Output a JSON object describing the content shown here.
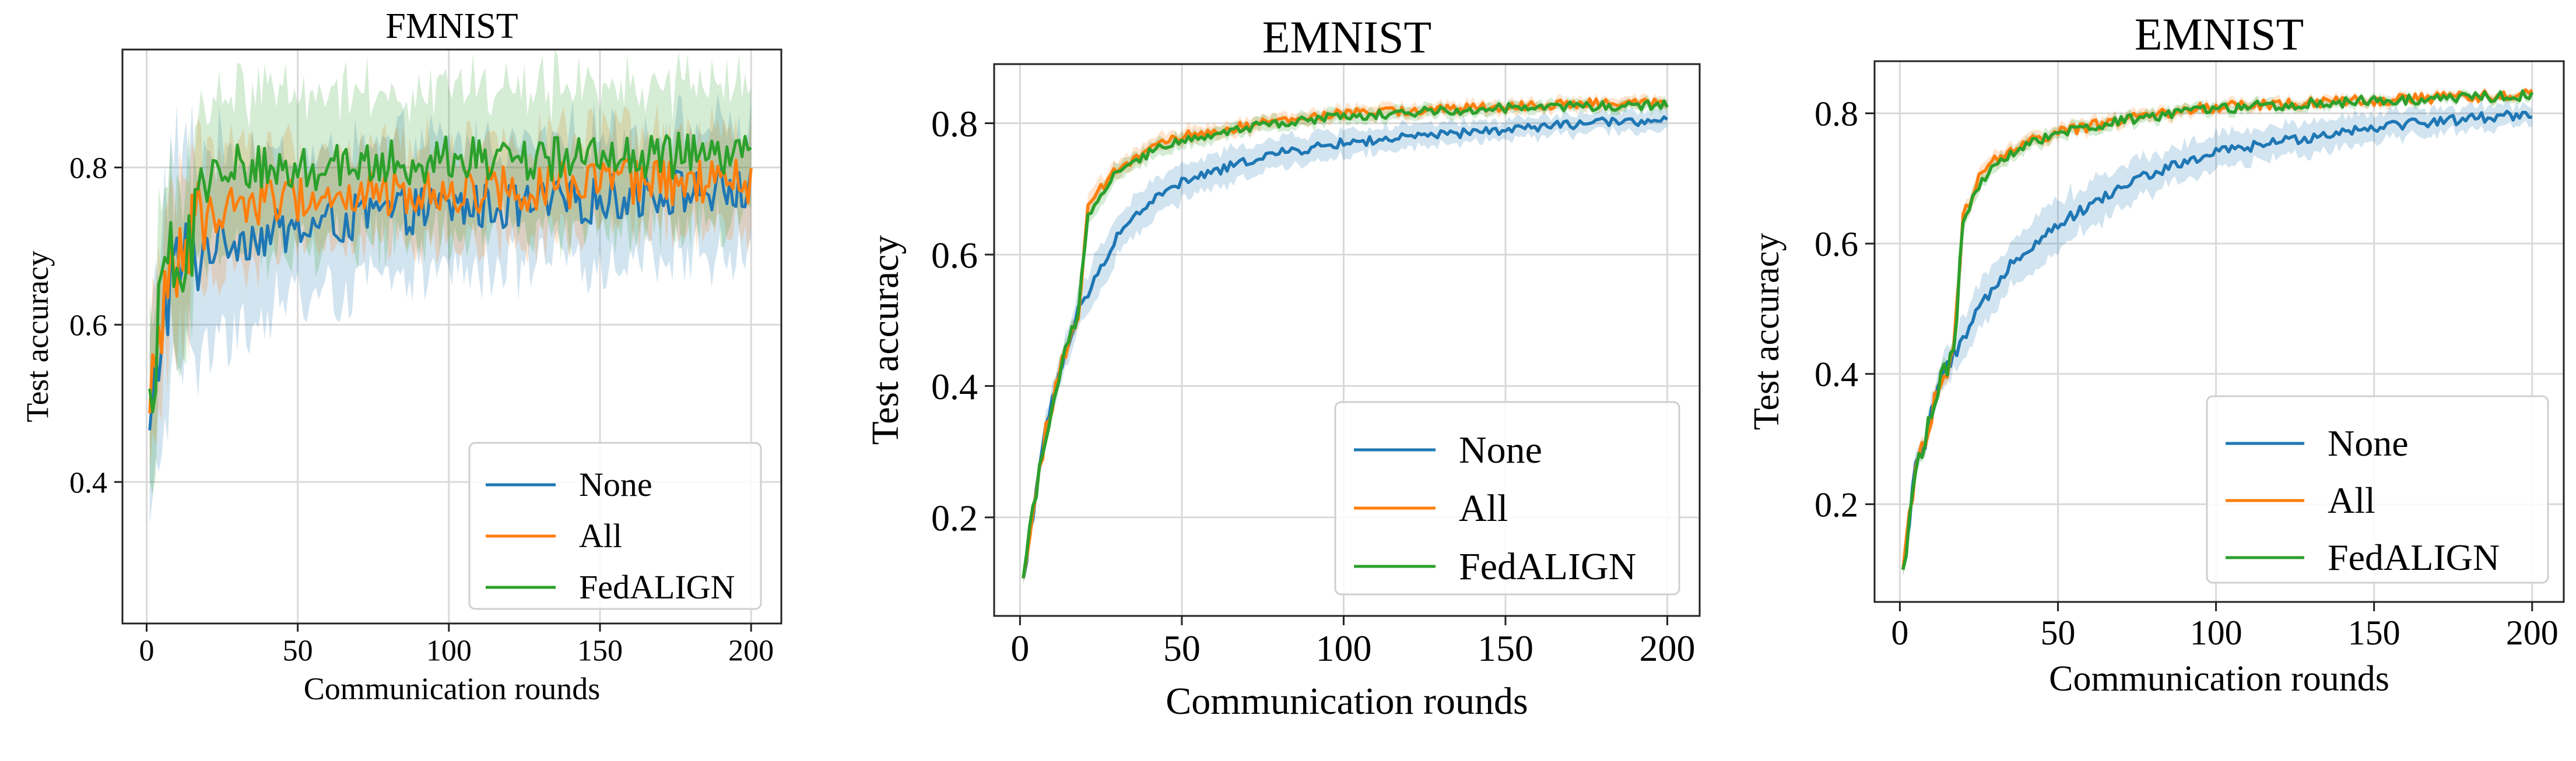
{
  "chart_data": [
    {
      "type": "line",
      "title": "FMNIST",
      "xlabel": "Communication rounds",
      "ylabel": "Test accuracy",
      "xlim": [
        -8,
        210
      ],
      "ylim": [
        0.22,
        0.95
      ],
      "xticks": [
        0,
        50,
        100,
        150,
        200
      ],
      "yticks": [
        0.4,
        0.6,
        0.8
      ],
      "xtick_labels": [
        "0",
        "50",
        "100",
        "150",
        "200"
      ],
      "ytick_labels": [
        "0.4",
        "0.6",
        "0.8"
      ],
      "grid": true,
      "legend": "bottom-right",
      "noise": 0.03,
      "band_scale": 1.0,
      "series": [
        {
          "name": "None",
          "color": "#1f77b4",
          "points": [
            [
              1,
              0.44
            ],
            [
              3,
              0.52
            ],
            [
              5,
              0.6
            ],
            [
              8,
              0.66
            ],
            [
              12,
              0.68
            ],
            [
              20,
              0.7
            ],
            [
              30,
              0.71
            ],
            [
              50,
              0.72
            ],
            [
              75,
              0.74
            ],
            [
              100,
              0.75
            ],
            [
              125,
              0.75
            ],
            [
              150,
              0.76
            ],
            [
              175,
              0.77
            ],
            [
              200,
              0.77
            ]
          ],
          "band": [
            [
              1,
              0.14
            ],
            [
              10,
              0.14
            ],
            [
              20,
              0.12
            ],
            [
              50,
              0.09
            ],
            [
              100,
              0.08
            ],
            [
              150,
              0.08
            ],
            [
              200,
              0.08
            ]
          ]
        },
        {
          "name": "All",
          "color": "#ff7f0e",
          "points": [
            [
              1,
              0.46
            ],
            [
              3,
              0.55
            ],
            [
              5,
              0.62
            ],
            [
              8,
              0.67
            ],
            [
              12,
              0.7
            ],
            [
              20,
              0.74
            ],
            [
              30,
              0.755
            ],
            [
              50,
              0.76
            ],
            [
              75,
              0.765
            ],
            [
              100,
              0.77
            ],
            [
              125,
              0.775
            ],
            [
              150,
              0.78
            ],
            [
              175,
              0.78
            ],
            [
              200,
              0.78
            ]
          ],
          "band": [
            [
              1,
              0.1
            ],
            [
              10,
              0.1
            ],
            [
              20,
              0.08
            ],
            [
              50,
              0.06
            ],
            [
              100,
              0.06
            ],
            [
              150,
              0.06
            ],
            [
              200,
              0.06
            ]
          ]
        },
        {
          "name": "FedALIGN",
          "color": "#2ca02c",
          "points": [
            [
              1,
              0.49
            ],
            [
              3,
              0.56
            ],
            [
              5,
              0.63
            ],
            [
              8,
              0.68
            ],
            [
              12,
              0.7
            ],
            [
              18,
              0.74
            ],
            [
              22,
              0.79
            ],
            [
              30,
              0.8
            ],
            [
              50,
              0.8
            ],
            [
              75,
              0.805
            ],
            [
              100,
              0.81
            ],
            [
              125,
              0.81
            ],
            [
              150,
              0.815
            ],
            [
              175,
              0.815
            ],
            [
              200,
              0.815
            ]
          ],
          "band": [
            [
              1,
              0.1
            ],
            [
              10,
              0.1
            ],
            [
              20,
              0.1
            ],
            [
              50,
              0.1
            ],
            [
              100,
              0.09
            ],
            [
              150,
              0.09
            ],
            [
              200,
              0.09
            ]
          ]
        }
      ]
    },
    {
      "type": "line",
      "title": "EMNIST",
      "xlabel": "Communication rounds",
      "ylabel": "Test accuracy",
      "xlim": [
        -8,
        210
      ],
      "ylim": [
        0.05,
        0.89
      ],
      "xticks": [
        0,
        50,
        100,
        150,
        200
      ],
      "yticks": [
        0.2,
        0.4,
        0.6,
        0.8
      ],
      "xtick_labels": [
        "0",
        "50",
        "100",
        "150",
        "200"
      ],
      "ytick_labels": [
        "0.2",
        "0.4",
        "0.6",
        "0.8"
      ],
      "grid": true,
      "legend": "bottom-right",
      "noise": 0.007,
      "band_scale": 1.0,
      "series": [
        {
          "name": "None",
          "color": "#1f77b4",
          "points": [
            [
              1,
              0.1
            ],
            [
              3,
              0.18
            ],
            [
              5,
              0.24
            ],
            [
              8,
              0.33
            ],
            [
              12,
              0.42
            ],
            [
              18,
              0.51
            ],
            [
              22,
              0.55
            ],
            [
              30,
              0.63
            ],
            [
              40,
              0.68
            ],
            [
              50,
              0.71
            ],
            [
              75,
              0.75
            ],
            [
              100,
              0.77
            ],
            [
              125,
              0.78
            ],
            [
              150,
              0.79
            ],
            [
              175,
              0.8
            ],
            [
              200,
              0.805
            ]
          ],
          "band": [
            [
              1,
              0.01
            ],
            [
              20,
              0.03
            ],
            [
              30,
              0.03
            ],
            [
              60,
              0.025
            ],
            [
              100,
              0.02
            ],
            [
              150,
              0.015
            ],
            [
              200,
              0.015
            ]
          ]
        },
        {
          "name": "All",
          "color": "#ff7f0e",
          "points": [
            [
              1,
              0.1
            ],
            [
              3,
              0.18
            ],
            [
              5,
              0.24
            ],
            [
              8,
              0.33
            ],
            [
              12,
              0.42
            ],
            [
              18,
              0.51
            ],
            [
              21,
              0.67
            ],
            [
              25,
              0.7
            ],
            [
              30,
              0.73
            ],
            [
              40,
              0.76
            ],
            [
              50,
              0.78
            ],
            [
              75,
              0.8
            ],
            [
              100,
              0.815
            ],
            [
              125,
              0.82
            ],
            [
              150,
              0.825
            ],
            [
              175,
              0.83
            ],
            [
              200,
              0.83
            ]
          ],
          "band": [
            [
              1,
              0.01
            ],
            [
              20,
              0.015
            ],
            [
              50,
              0.012
            ],
            [
              100,
              0.01
            ],
            [
              200,
              0.008
            ]
          ]
        },
        {
          "name": "FedALIGN",
          "color": "#2ca02c",
          "points": [
            [
              1,
              0.1
            ],
            [
              3,
              0.18
            ],
            [
              5,
              0.24
            ],
            [
              8,
              0.33
            ],
            [
              12,
              0.42
            ],
            [
              18,
              0.51
            ],
            [
              21,
              0.66
            ],
            [
              25,
              0.695
            ],
            [
              30,
              0.725
            ],
            [
              40,
              0.755
            ],
            [
              50,
              0.775
            ],
            [
              75,
              0.798
            ],
            [
              100,
              0.81
            ],
            [
              125,
              0.818
            ],
            [
              150,
              0.823
            ],
            [
              175,
              0.826
            ],
            [
              200,
              0.828
            ]
          ],
          "band": [
            [
              1,
              0.01
            ],
            [
              20,
              0.015
            ],
            [
              50,
              0.012
            ],
            [
              100,
              0.01
            ],
            [
              200,
              0.008
            ]
          ]
        }
      ]
    },
    {
      "type": "line",
      "title": "EMNIST",
      "xlabel": "Communication rounds",
      "ylabel": "Test accuracy",
      "xlim": [
        -8,
        210
      ],
      "ylim": [
        0.05,
        0.88
      ],
      "xticks": [
        0,
        50,
        100,
        150,
        200
      ],
      "yticks": [
        0.2,
        0.4,
        0.6,
        0.8
      ],
      "xtick_labels": [
        "0",
        "50",
        "100",
        "150",
        "200"
      ],
      "ytick_labels": [
        "0.2",
        "0.4",
        "0.6",
        "0.8"
      ],
      "grid": true,
      "legend": "bottom-right",
      "noise": 0.008,
      "band_scale": 1.0,
      "series": [
        {
          "name": "None",
          "color": "#1f77b4",
          "points": [
            [
              1,
              0.09
            ],
            [
              3,
              0.18
            ],
            [
              5,
              0.25
            ],
            [
              8,
              0.3
            ],
            [
              12,
              0.38
            ],
            [
              18,
              0.43
            ],
            [
              25,
              0.5
            ],
            [
              35,
              0.57
            ],
            [
              50,
              0.63
            ],
            [
              75,
              0.7
            ],
            [
              100,
              0.74
            ],
            [
              125,
              0.76
            ],
            [
              150,
              0.78
            ],
            [
              175,
              0.79
            ],
            [
              200,
              0.8
            ]
          ],
          "band": [
            [
              1,
              0.01
            ],
            [
              20,
              0.03
            ],
            [
              40,
              0.04
            ],
            [
              75,
              0.03
            ],
            [
              120,
              0.025
            ],
            [
              200,
              0.015
            ]
          ]
        },
        {
          "name": "All",
          "color": "#ff7f0e",
          "points": [
            [
              1,
              0.09
            ],
            [
              3,
              0.18
            ],
            [
              5,
              0.25
            ],
            [
              8,
              0.3
            ],
            [
              12,
              0.38
            ],
            [
              17,
              0.43
            ],
            [
              20,
              0.64
            ],
            [
              25,
              0.7
            ],
            [
              30,
              0.73
            ],
            [
              40,
              0.755
            ],
            [
              50,
              0.77
            ],
            [
              75,
              0.795
            ],
            [
              100,
              0.81
            ],
            [
              125,
              0.815
            ],
            [
              150,
              0.82
            ],
            [
              175,
              0.825
            ],
            [
              200,
              0.828
            ]
          ],
          "band": [
            [
              1,
              0.01
            ],
            [
              20,
              0.012
            ],
            [
              50,
              0.01
            ],
            [
              100,
              0.008
            ],
            [
              200,
              0.006
            ]
          ]
        },
        {
          "name": "FedALIGN",
          "color": "#2ca02c",
          "points": [
            [
              1,
              0.09
            ],
            [
              3,
              0.18
            ],
            [
              5,
              0.25
            ],
            [
              8,
              0.3
            ],
            [
              12,
              0.38
            ],
            [
              17,
              0.43
            ],
            [
              20,
              0.63
            ],
            [
              25,
              0.69
            ],
            [
              30,
              0.725
            ],
            [
              40,
              0.752
            ],
            [
              50,
              0.768
            ],
            [
              75,
              0.793
            ],
            [
              100,
              0.808
            ],
            [
              125,
              0.814
            ],
            [
              150,
              0.82
            ],
            [
              175,
              0.824
            ],
            [
              200,
              0.827
            ]
          ],
          "band": [
            [
              1,
              0.01
            ],
            [
              20,
              0.012
            ],
            [
              50,
              0.01
            ],
            [
              100,
              0.008
            ],
            [
              200,
              0.006
            ]
          ]
        }
      ]
    }
  ]
}
